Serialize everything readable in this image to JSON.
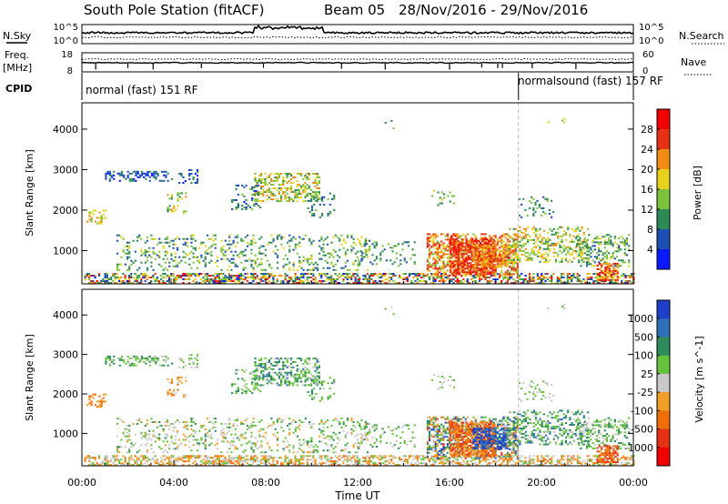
{
  "header": {
    "station": "South Pole Station (fitACF)",
    "beam": "Beam 05",
    "dates": "28/Nov/2016 - 29/Nov/2016"
  },
  "noise_panel": {
    "left_label": "N.Sky",
    "right_label": "N.Search",
    "left_ticks": [
      "10^5",
      "10^0"
    ],
    "right_ticks": [
      "10^5",
      "10^0"
    ]
  },
  "freq_panel": {
    "left_label_top": "Freq.",
    "left_label_unit": "[MHz]",
    "right_label": "Nave",
    "left_ticks": [
      "18",
      "8"
    ],
    "right_ticks": [
      "60",
      "0"
    ]
  },
  "cpid_panel": {
    "label": "CPID",
    "modes": [
      {
        "text": "normal (fast) 151 RF",
        "start_hour": 0
      },
      {
        "text": "normalsound (fast) 157 RF",
        "start_hour": 19
      }
    ]
  },
  "chart_data": [
    {
      "type": "heatmap",
      "title": "Power",
      "ylabel": "Slant Range [km]",
      "ylim": [
        180,
        4650
      ],
      "yticks": [
        1000,
        2000,
        3000,
        4000
      ],
      "colorbar": {
        "label": "Power [dB]",
        "tick_labels": [
          "4",
          "8",
          "12",
          "16",
          "20",
          "24",
          "28"
        ],
        "colors": [
          "#0a1aff",
          "#1e50b4",
          "#2d8a55",
          "#7cc23c",
          "#e6d21e",
          "#f08c14",
          "#e63214",
          "#f00000"
        ]
      }
    },
    {
      "type": "heatmap",
      "title": "Velocity",
      "xlabel": "Time UT",
      "ylabel": "Slant Range [km]",
      "ylim": [
        180,
        4650
      ],
      "yticks": [
        1000,
        2000,
        3000,
        4000
      ],
      "xticks": [
        "00:00",
        "04:00",
        "08:00",
        "12:00",
        "16:00",
        "20:00",
        "00:00"
      ],
      "xlim_hours": [
        0,
        24
      ],
      "colorbar": {
        "label": "Velocity [m s^-1]",
        "tick_labels": [
          "1000",
          "500",
          "100",
          "25",
          "-25",
          "-100",
          "-500",
          "-1000"
        ],
        "colors": [
          "#1e40c8",
          "#2f6fb8",
          "#2d8c5a",
          "#66c23c",
          "#c8c8c8",
          "#f0a028",
          "#f06e0a",
          "#e63214",
          "#f00000"
        ]
      }
    }
  ]
}
